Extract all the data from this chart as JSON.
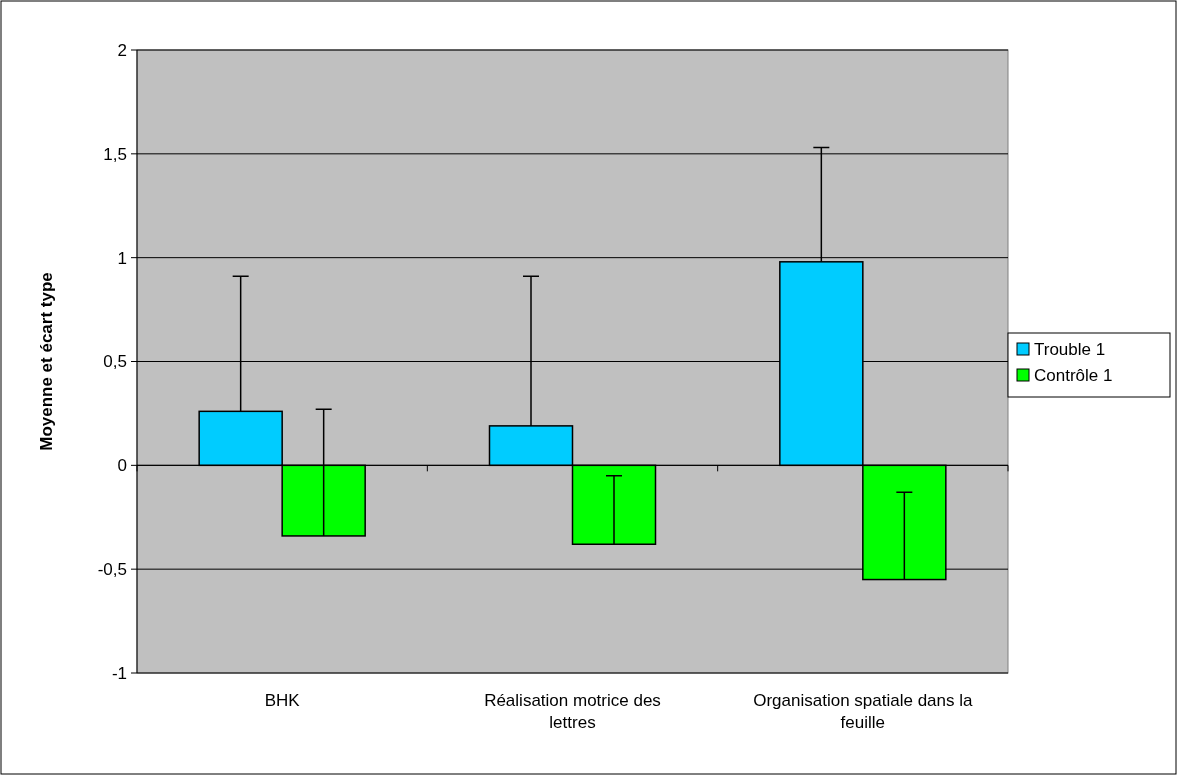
{
  "chart_data": {
    "type": "bar",
    "ylabel": "Moyenne et écart type",
    "categories": [
      "BHK",
      "Réalisation motrice des lettres",
      "Organisation spatiale dans la feuille"
    ],
    "series": [
      {
        "name": "Trouble 1",
        "color": "#00ccff",
        "values": [
          0.26,
          0.19,
          0.98
        ],
        "errors": [
          [
            0.26,
            0.91
          ],
          [
            0.19,
            0.91
          ],
          [
            0.98,
            1.53
          ]
        ]
      },
      {
        "name": "Contrôle 1",
        "color": "#00ff00",
        "values": [
          -0.34,
          -0.38,
          -0.55
        ],
        "errors": [
          [
            -0.34,
            0.27
          ],
          [
            -0.38,
            -0.05
          ],
          [
            -0.55,
            -0.13
          ]
        ]
      }
    ],
    "ylim": [
      -1,
      2
    ],
    "yticks": [
      -1,
      {
        "value": -0.5,
        "label": "-0,5"
      },
      0,
      {
        "value": 0.5,
        "label": "0,5"
      },
      1,
      {
        "value": 1.5,
        "label": "1,5"
      },
      2
    ],
    "grid": "y",
    "legend": "right"
  }
}
